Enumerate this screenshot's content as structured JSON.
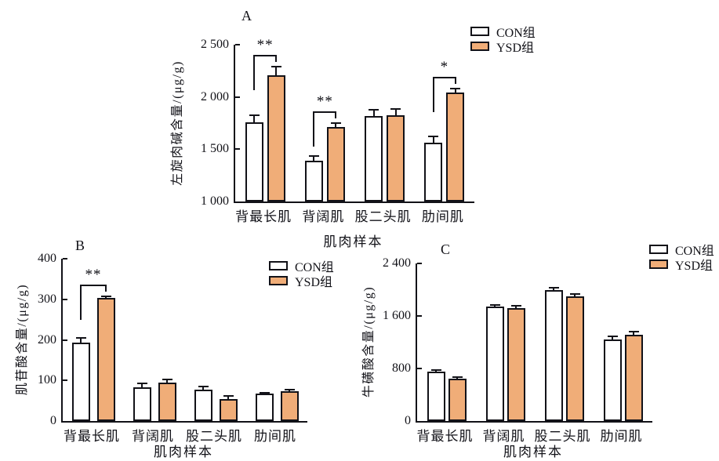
{
  "figure": {
    "colors": {
      "con_fill": "#ffffff",
      "ysd_fill": "#f0ad78",
      "axis": "#121218"
    },
    "group_labels": {
      "con": "CON组",
      "ysd": "YSD组"
    }
  },
  "chart_data": [
    {
      "type": "bar",
      "panel": "A",
      "ylabel": "左旋肉碱含量/(μg/g)",
      "xlabel": "肌肉样本",
      "categories": [
        "背最长肌",
        "背阔肌",
        "股二头肌",
        "肋间肌"
      ],
      "ylim": [
        1000,
        2500
      ],
      "yticks": [
        1000,
        1500,
        2000,
        2500
      ],
      "ytick_labels": [
        "1 000",
        "1 500",
        "2 000",
        "2 500"
      ],
      "series": [
        {
          "name": "CON组",
          "key": "con",
          "fill": "#ffffff",
          "values": [
            1755,
            1390,
            1815,
            1565
          ],
          "errors": [
            70,
            45,
            60,
            55
          ]
        },
        {
          "name": "YSD组",
          "key": "ysd",
          "fill": "#f0ad78",
          "values": [
            2205,
            1710,
            1825,
            2045
          ],
          "errors": [
            85,
            40,
            60,
            35
          ]
        }
      ],
      "significance": [
        "**",
        "**",
        null,
        "*"
      ],
      "legend": [
        "CON组",
        "YSD组"
      ],
      "legend_position": "top-right-outside",
      "grid": false
    },
    {
      "type": "bar",
      "panel": "B",
      "ylabel": "肌苷酸含量/(μg/g)",
      "xlabel": "肌肉样本",
      "categories": [
        "背最长肌",
        "背阔肌",
        "股二头肌",
        "肋间肌"
      ],
      "ylim": [
        0,
        400
      ],
      "yticks": [
        0,
        100,
        200,
        300,
        400
      ],
      "ytick_labels": [
        "0",
        "100",
        "200",
        "300",
        "400"
      ],
      "series": [
        {
          "name": "CON组",
          "key": "con",
          "fill": "#ffffff",
          "values": [
            193,
            84,
            77,
            67
          ],
          "errors": [
            12,
            8,
            8,
            3
          ]
        },
        {
          "name": "YSD组",
          "key": "ysd",
          "fill": "#f0ad78",
          "values": [
            303,
            94,
            54,
            73
          ],
          "errors": [
            5,
            8,
            8,
            4
          ]
        }
      ],
      "significance": [
        "**",
        null,
        null,
        null
      ],
      "legend": [
        "CON组",
        "YSD组"
      ],
      "legend_position": "top-right-inside",
      "grid": false
    },
    {
      "type": "bar",
      "panel": "C",
      "ylabel": "牛磺酸含量/(μg/g)",
      "xlabel": "肌肉样本",
      "categories": [
        "背最长肌",
        "背阔肌",
        "股二头肌",
        "肋间肌"
      ],
      "ylim": [
        0,
        2400
      ],
      "yticks": [
        0,
        800,
        1600,
        2400
      ],
      "ytick_labels": [
        "0",
        "800",
        "1 600",
        "2 400"
      ],
      "series": [
        {
          "name": "CON组",
          "key": "con",
          "fill": "#ffffff",
          "values": [
            750,
            1740,
            1995,
            1245
          ],
          "errors": [
            30,
            30,
            35,
            40
          ]
        },
        {
          "name": "YSD组",
          "key": "ysd",
          "fill": "#f0ad78",
          "values": [
            645,
            1725,
            1895,
            1315
          ],
          "errors": [
            25,
            35,
            40,
            45
          ]
        }
      ],
      "significance": [
        null,
        null,
        null,
        null
      ],
      "legend": [
        "CON组",
        "YSD组"
      ],
      "legend_position": "top-right-outside",
      "grid": false
    }
  ]
}
